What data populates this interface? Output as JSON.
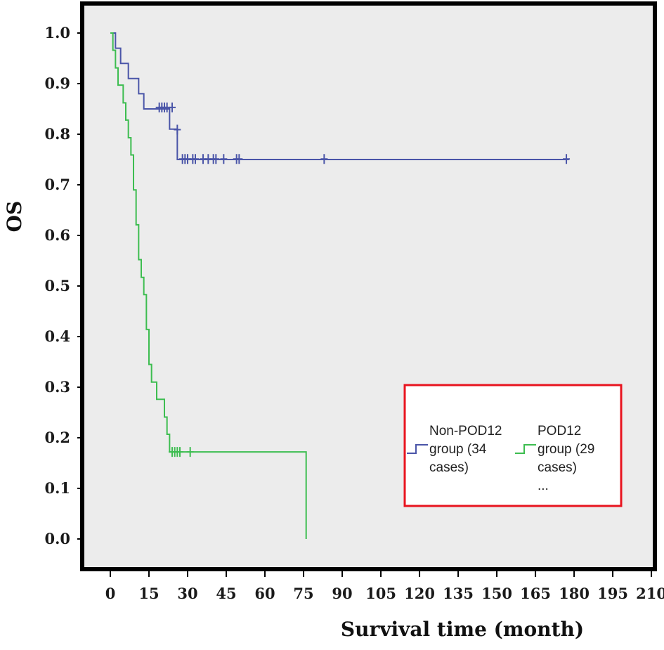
{
  "chart_data": {
    "type": "line",
    "title": "",
    "xlabel": "Survival time (month)",
    "ylabel": "OS",
    "xlim": [
      0,
      210
    ],
    "ylim": [
      0,
      1.0
    ],
    "x_ticks": [
      "0",
      "15",
      "30",
      "45",
      "60",
      "75",
      "90",
      "105",
      "120",
      "135",
      "150",
      "165",
      "180",
      "195",
      "210"
    ],
    "y_ticks": [
      "0.0",
      "0.1",
      "0.2",
      "0.3",
      "0.4",
      "0.5",
      "0.6",
      "0.7",
      "0.8",
      "0.9",
      "1.0"
    ],
    "grid": false,
    "legend_position": "bottom-right",
    "series": [
      {
        "name": "Non-POD12 group (34 cases)",
        "color": "#4a55a8",
        "x": [
          0,
          2,
          4,
          7,
          11,
          13,
          16,
          23,
          24,
          26,
          28,
          178
        ],
        "y": [
          1.0,
          0.97,
          0.94,
          0.91,
          0.88,
          0.85,
          0.85,
          0.81,
          0.81,
          0.75,
          0.75,
          0.75
        ],
        "censored_x": [
          19,
          20,
          21,
          22,
          24,
          26,
          28,
          29,
          30,
          32,
          33,
          36,
          38,
          40,
          41,
          44,
          49,
          50,
          83,
          177
        ],
        "censored_y": [
          0.853,
          0.853,
          0.853,
          0.853,
          0.853,
          0.809,
          0.751,
          0.751,
          0.751,
          0.751,
          0.751,
          0.751,
          0.751,
          0.751,
          0.751,
          0.751,
          0.751,
          0.751,
          0.751,
          0.751
        ]
      },
      {
        "name": "POD12 group (29 cases)",
        "color": "#3dbd50",
        "x": [
          0,
          1,
          2,
          3,
          5,
          6,
          7,
          8,
          9,
          10,
          11,
          12,
          13,
          14,
          15,
          16,
          18,
          19,
          20,
          21,
          22,
          23,
          24,
          76,
          76
        ],
        "y": [
          1.0,
          0.966,
          0.931,
          0.897,
          0.862,
          0.828,
          0.793,
          0.759,
          0.69,
          0.621,
          0.552,
          0.517,
          0.483,
          0.414,
          0.345,
          0.31,
          0.276,
          0.276,
          0.276,
          0.241,
          0.207,
          0.172,
          0.172,
          0.172,
          0.0
        ],
        "censored_x": [
          24,
          25,
          26,
          27,
          31
        ],
        "censored_y": [
          0.172,
          0.172,
          0.172,
          0.172,
          0.172
        ]
      }
    ]
  },
  "legend": {
    "entries": [
      {
        "line1": "Non-POD12",
        "line2": "group (34",
        "line3": "cases)",
        "color": "#4a55a8"
      },
      {
        "line1": "POD12",
        "line2": "group (29",
        "line3": "cases)",
        "color": "#3dbd50"
      }
    ],
    "ellipsis": "..."
  },
  "colors": {
    "frame": "#000000",
    "plot_background": "#ececec",
    "legend_border": "#e8141f"
  }
}
